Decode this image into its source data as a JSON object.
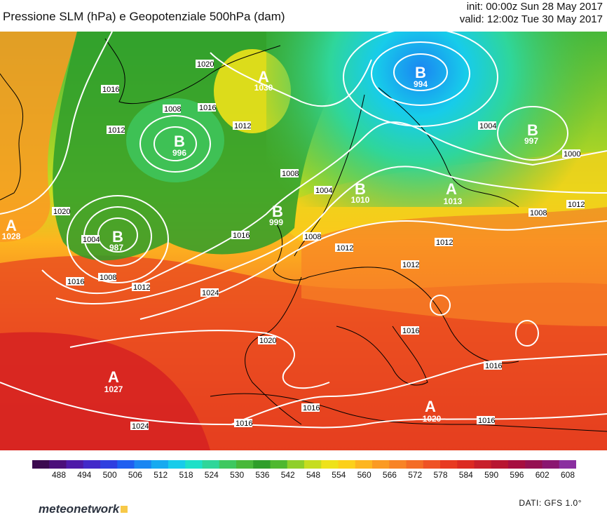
{
  "header": {
    "title": "Pressione SLM (hPa) e Geopotenziale 500hPa (dam)",
    "init": "init: 00:00z Sun 28 May 2017",
    "valid": "valid: 12:00z Tue 30 May 2017"
  },
  "map": {
    "region": "Europe / North Atlantic",
    "pressure_centers": [
      {
        "type": "A",
        "value": "1028"
      },
      {
        "type": "A",
        "value": "1030"
      },
      {
        "type": "B",
        "value": "994"
      },
      {
        "type": "B",
        "value": "997"
      },
      {
        "type": "B",
        "value": "996"
      },
      {
        "type": "B",
        "value": "987"
      },
      {
        "type": "B",
        "value": "999"
      },
      {
        "type": "B",
        "value": "1010"
      },
      {
        "type": "A",
        "value": "1013"
      },
      {
        "type": "A",
        "value": "1027"
      },
      {
        "type": "A",
        "value": "1020"
      }
    ],
    "isobar_labels": [
      "1020",
      "1016",
      "1008",
      "1016",
      "1012",
      "1012",
      "1008",
      "1004",
      "1004",
      "1000",
      "1012",
      "1008",
      "1004",
      "1016",
      "1008",
      "1012",
      "1020",
      "1024",
      "1008",
      "1012",
      "1012",
      "1016",
      "1012",
      "1020",
      "1016",
      "1016",
      "1016",
      "1024",
      "1016",
      "1016"
    ]
  },
  "colorbar": {
    "ticks": [
      "488",
      "494",
      "500",
      "506",
      "512",
      "518",
      "524",
      "530",
      "536",
      "542",
      "548",
      "554",
      "560",
      "566",
      "572",
      "578",
      "584",
      "590",
      "596",
      "602",
      "608"
    ],
    "colors": [
      "#3b0a4f",
      "#4b0f7a",
      "#4e1aa8",
      "#4329c9",
      "#2f3fe0",
      "#1f5ef0",
      "#1a86f2",
      "#16aaf0",
      "#17ccea",
      "#1ee0c8",
      "#2fd69a",
      "#3ec860",
      "#48b83a",
      "#2e9e2a",
      "#4fb830",
      "#8fcf2a",
      "#c6dd20",
      "#eee21a",
      "#fcd01a",
      "#fdb51f",
      "#fb9a22",
      "#f88325",
      "#f46c25",
      "#ef5224",
      "#e83a22",
      "#dc2a22",
      "#c81f2a",
      "#b81530",
      "#a60e40",
      "#951052",
      "#8a1670",
      "#8a2fa0"
    ]
  },
  "footer": {
    "brand": "meteonetwork",
    "source": "DATI: GFS 1.0°"
  }
}
